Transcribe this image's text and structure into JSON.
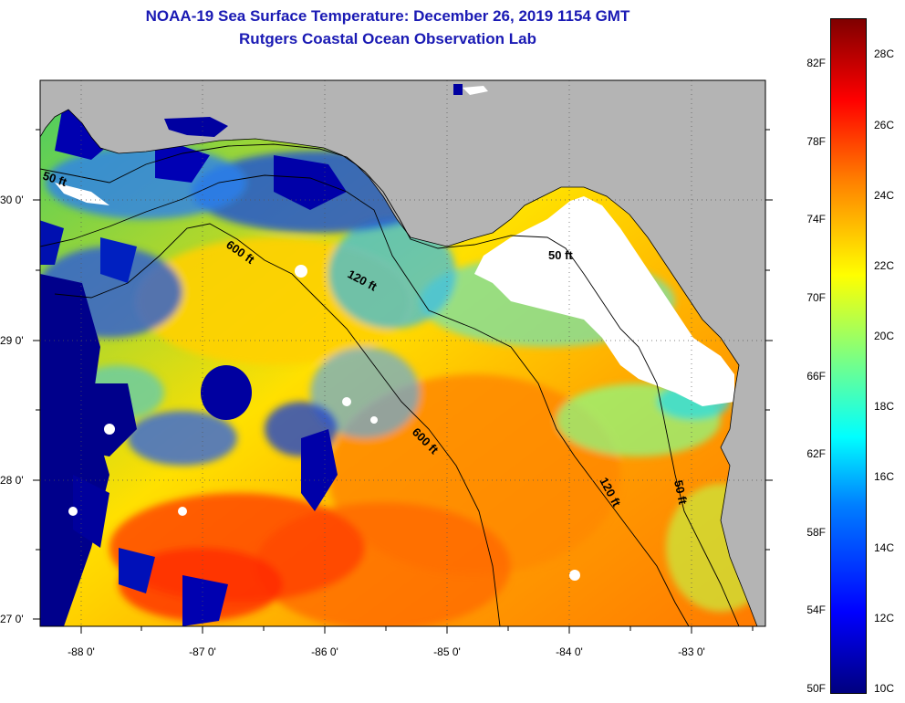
{
  "header": {
    "title_line1": "NOAA-19 Sea Surface Temperature:  December 26, 2019 1154 GMT",
    "title_line2": "Rutgers Coastal Ocean Observation Lab"
  },
  "map": {
    "longitude_labels": [
      "-88 0'",
      "-87 0'",
      "-86 0'",
      "-85 0'",
      "-84 0'",
      "-83 0'"
    ],
    "latitude_labels": [
      "30 0'",
      "29 0'",
      "28 0'",
      "27 0'"
    ],
    "contour_labels": {
      "c50_west": "50 ft",
      "c600_north": "600 ft",
      "c120_north": "120 ft",
      "c50_bigbend": "50 ft",
      "c600_south": "600 ft",
      "c120_south": "120 ft",
      "c50_south": "50 ft"
    },
    "colors": {
      "land": "#b4b4b4",
      "cloud": "#ffffff",
      "warm": "#ff8c00",
      "cold": "#00008b"
    }
  },
  "colorbar": {
    "fahrenheit_labels": [
      "82F",
      "78F",
      "74F",
      "70F",
      "66F",
      "62F",
      "58F",
      "54F",
      "50F"
    ],
    "celsius_labels": [
      "28C",
      "26C",
      "24C",
      "22C",
      "20C",
      "18C",
      "16C",
      "14C",
      "12C",
      "10C"
    ]
  }
}
